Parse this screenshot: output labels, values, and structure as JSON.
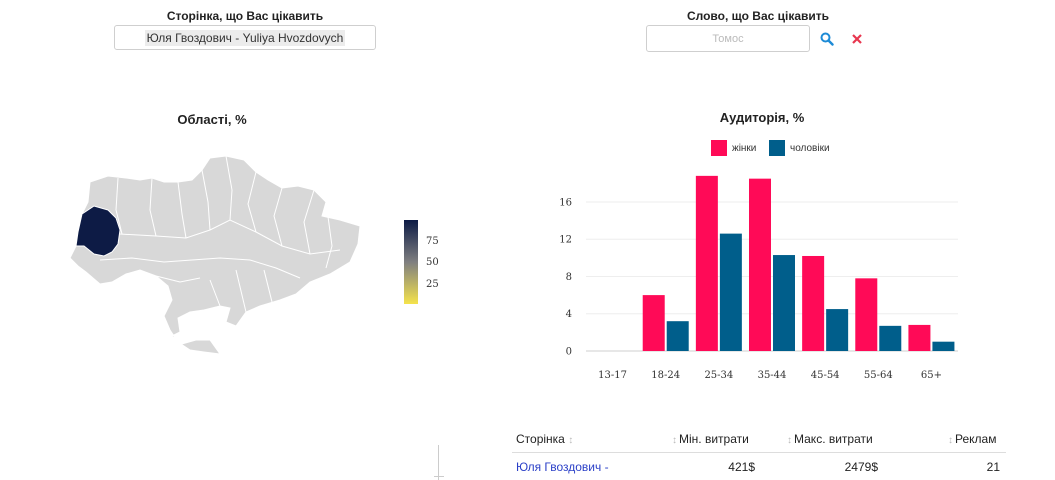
{
  "filters": {
    "page_label": "Сторінка, що Вас цікавить",
    "page_value": "Юля Гвоздович - Yuliya Hvozdovych",
    "word_label": "Слово, що Вас цікавить",
    "word_placeholder": "Томос",
    "search_icon": "search-icon",
    "clear_icon": "close-icon"
  },
  "regions": {
    "title": "Області, %",
    "colorbar_ticks": [
      "75",
      "50",
      "25"
    ],
    "colors": {
      "high": "#0d1b45",
      "mid": "#7f7f80",
      "low": "#f5e34c",
      "default": "#d8d8d8"
    }
  },
  "audience": {
    "title": "Аудиторія, %",
    "legend": [
      {
        "name": "жінки",
        "color": "#ff0a57"
      },
      {
        "name": "чоловіки",
        "color": "#005e8b"
      }
    ]
  },
  "chart_data": [
    {
      "type": "bar",
      "title": "Аудиторія, %",
      "categories": [
        "13-17",
        "18-24",
        "25-34",
        "35-44",
        "45-54",
        "55-64",
        "65+"
      ],
      "series": [
        {
          "name": "жінки",
          "color": "#ff0a57",
          "values": [
            0,
            6.0,
            18.8,
            18.5,
            10.2,
            7.8,
            2.8
          ]
        },
        {
          "name": "чоловіки",
          "color": "#005e8b",
          "values": [
            0,
            3.2,
            12.6,
            10.3,
            4.5,
            2.7,
            1.0
          ]
        }
      ],
      "yticks": [
        0,
        4,
        8,
        12,
        16
      ],
      "ylim": [
        0,
        19
      ],
      "grid": true
    }
  ],
  "table": {
    "headers": [
      "Сторінка",
      "Мін. витрати",
      "Макс. витрати",
      "Реклам"
    ],
    "rows": [
      {
        "page": "Юля Гвоздович -",
        "min": "421$",
        "max": "2479$",
        "ads": "21"
      }
    ]
  }
}
